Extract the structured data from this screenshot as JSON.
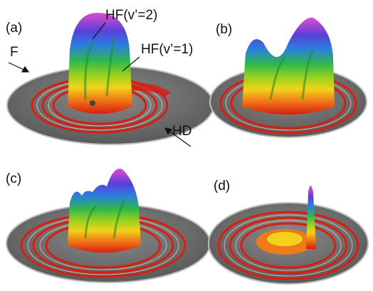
{
  "panels": [
    {
      "label": "(a)"
    },
    {
      "label": "(b)"
    },
    {
      "label": "(c)"
    },
    {
      "label": "(d)"
    }
  ],
  "annotations": {
    "hf2": "HF(v’=2)",
    "hf1": "HF(v’=1)",
    "f": "F",
    "hd": "HD"
  }
}
